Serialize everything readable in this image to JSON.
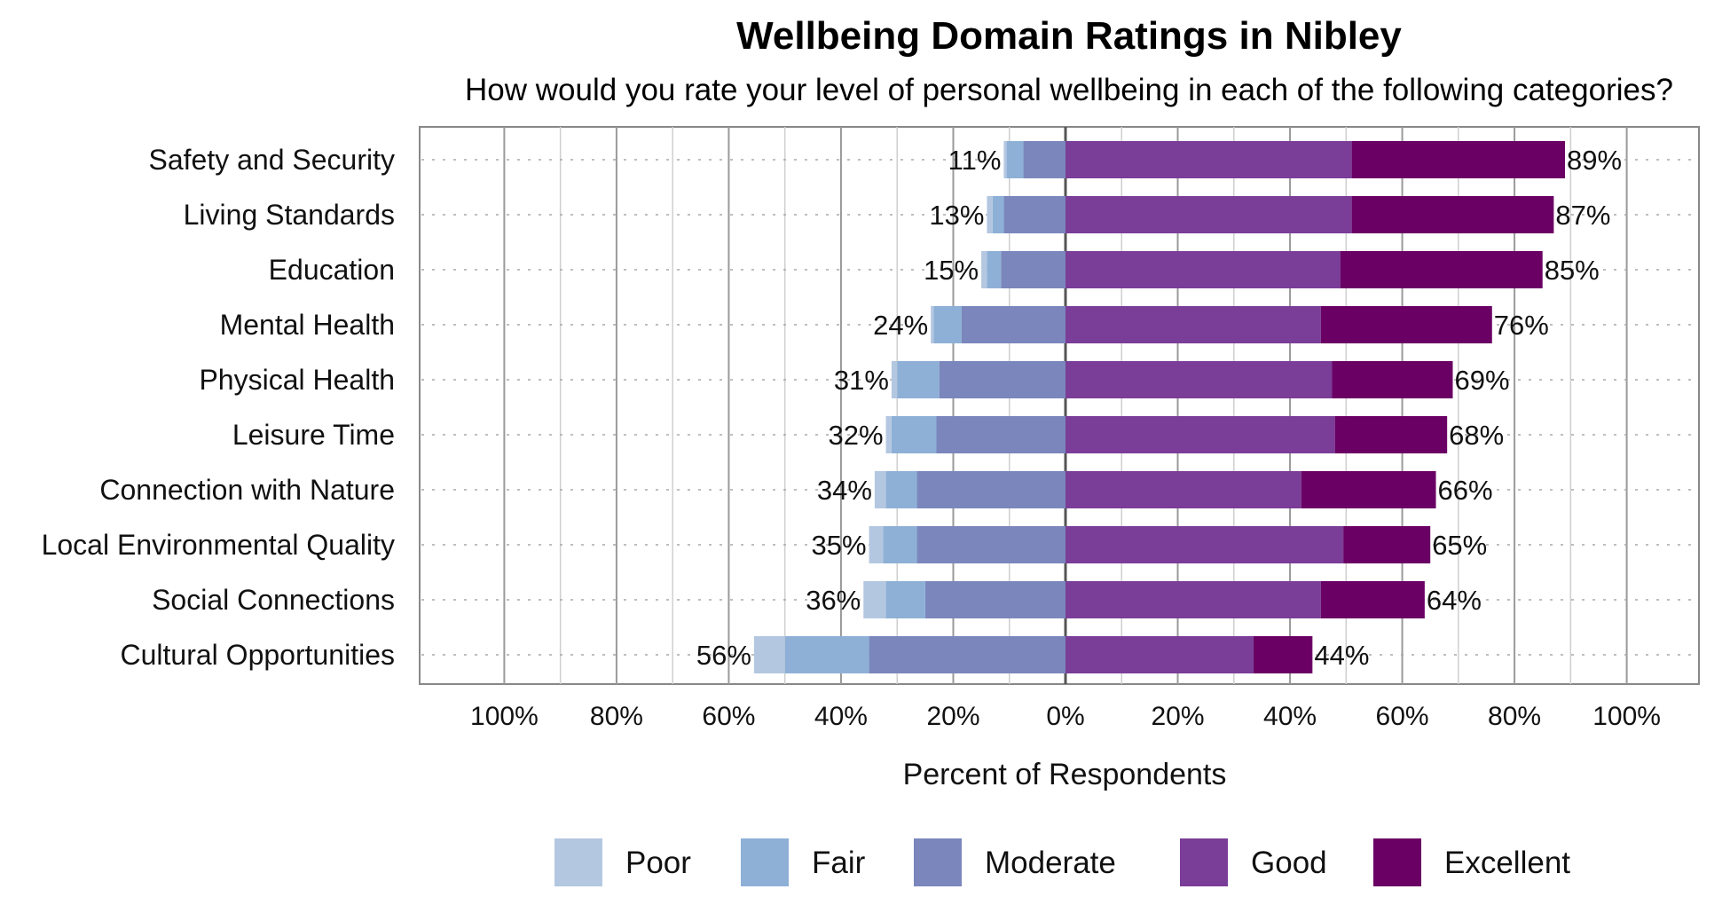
{
  "chart_data": {
    "type": "bar",
    "orientation": "horizontal",
    "stacking": "diverging",
    "title": "Wellbeing Domain Ratings in Nibley",
    "subtitle": "How would you rate your level of personal wellbeing in each of the following categories?",
    "xlabel": "Percent of Respondents",
    "xlim": [
      -100,
      100
    ],
    "x_ticks": [
      -100,
      -80,
      -60,
      -40,
      -20,
      0,
      20,
      40,
      60,
      80,
      100
    ],
    "x_tick_labels": [
      "100%",
      "80%",
      "60%",
      "40%",
      "20%",
      "0%",
      "20%",
      "40%",
      "60%",
      "80%",
      "100%"
    ],
    "grid": true,
    "legend_position": "bottom",
    "categories": [
      "Safety and Security",
      "Living Standards",
      "Education",
      "Mental Health",
      "Physical Health",
      "Leisure Time",
      "Connection with Nature",
      "Local Environmental Quality",
      "Social Connections",
      "Cultural Opportunities"
    ],
    "series": [
      {
        "name": "Poor",
        "side": "negative",
        "color": "#b4c7e1",
        "values": [
          0.5,
          1,
          1,
          0.5,
          1,
          1,
          2,
          2.5,
          4,
          5.5
        ]
      },
      {
        "name": "Fair",
        "side": "negative",
        "color": "#8eb0d6",
        "values": [
          3,
          2,
          2.5,
          5,
          7.5,
          8,
          5.5,
          6,
          7,
          15
        ]
      },
      {
        "name": "Moderate",
        "side": "negative",
        "color": "#7a86bc",
        "values": [
          7.5,
          11,
          11.5,
          18.5,
          22.5,
          23,
          26.5,
          26.5,
          25,
          35
        ]
      },
      {
        "name": "Good",
        "side": "positive",
        "color": "#7a3d98",
        "values": [
          51,
          51,
          49,
          45.5,
          47.5,
          48,
          42,
          49.5,
          45.5,
          33.5
        ]
      },
      {
        "name": "Excellent",
        "side": "positive",
        "color": "#6a0064",
        "values": [
          38,
          36,
          36,
          30.5,
          21.5,
          20,
          24,
          15.5,
          18.5,
          10.5
        ]
      }
    ],
    "negative_totals": [
      "11%",
      "13%",
      "15%",
      "24%",
      "31%",
      "32%",
      "34%",
      "35%",
      "36%",
      "56%"
    ],
    "positive_totals": [
      "89%",
      "87%",
      "85%",
      "76%",
      "69%",
      "68%",
      "66%",
      "65%",
      "64%",
      "44%"
    ]
  }
}
